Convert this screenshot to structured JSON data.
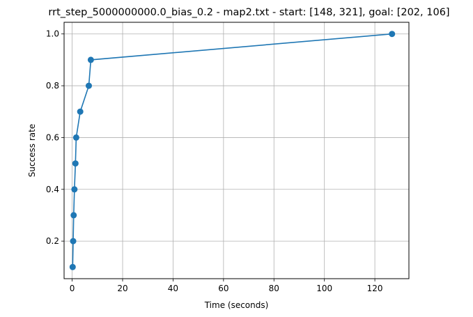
{
  "chart_data": {
    "type": "line",
    "title": "rrt_step_5000000000.0_bias_0.2 - map2.txt - start: [148, 321], goal: [202, 106]",
    "xlabel": "Time (seconds)",
    "ylabel": "Success rate",
    "xlim": [
      -3.2,
      133.5
    ],
    "ylim": [
      0.055,
      1.045
    ],
    "grid": true,
    "x_ticks": [
      0,
      20,
      40,
      60,
      80,
      100,
      120
    ],
    "y_ticks": [
      0.2,
      0.4,
      0.6,
      0.8,
      1.0
    ],
    "x_tick_labels": [
      "0",
      "20",
      "40",
      "60",
      "80",
      "100",
      "120"
    ],
    "y_tick_labels": [
      "0.2",
      "0.4",
      "0.6",
      "0.8",
      "1.0"
    ],
    "series": [
      {
        "color": "#1f77b4",
        "marker": "circle",
        "x": [
          0.2,
          0.4,
          0.6,
          0.9,
          1.3,
          1.6,
          3.2,
          6.6,
          7.4,
          126.8
        ],
        "y": [
          0.1,
          0.2,
          0.3,
          0.4,
          0.5,
          0.6,
          0.7,
          0.8,
          0.9,
          1.0
        ]
      }
    ]
  }
}
